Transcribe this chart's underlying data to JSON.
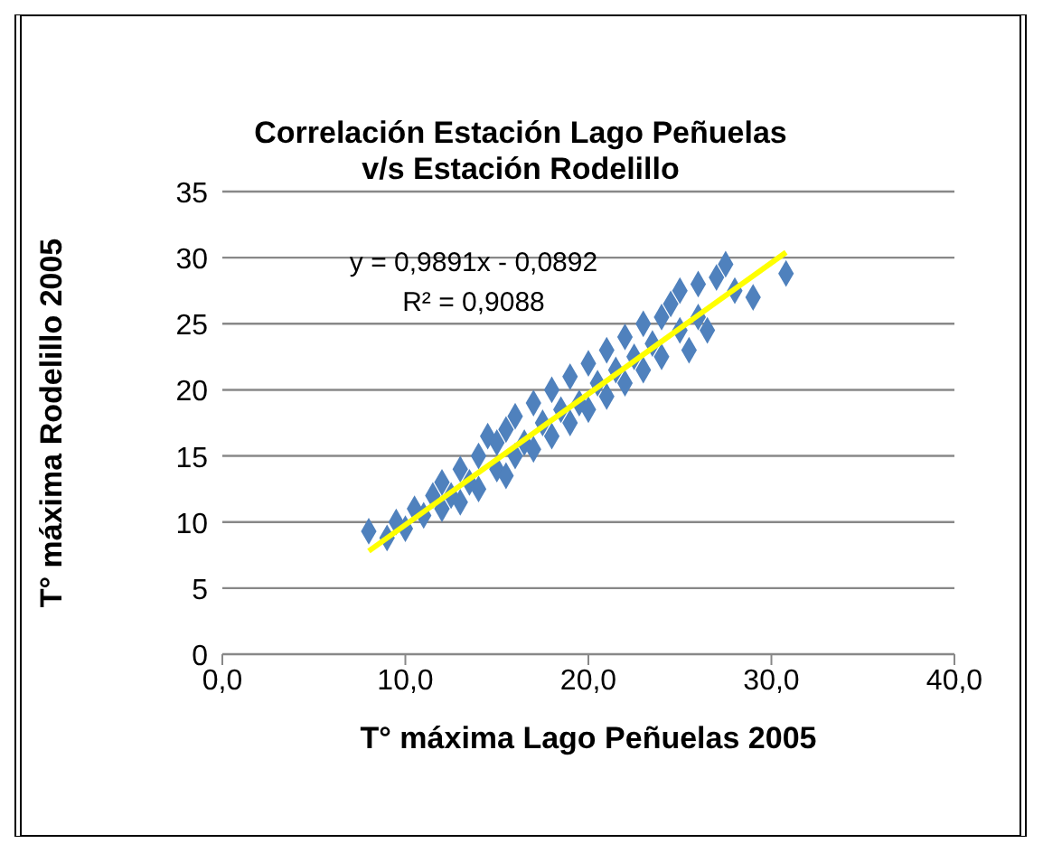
{
  "chart_data": {
    "type": "scatter",
    "title": "Correlación Estación Lago Peñuelas\nv/s Estación Rodelillo",
    "xlabel": "T° máxima Lago Peñuelas 2005",
    "ylabel": "T° máxima Rodelillo 2005",
    "annotations": [
      "y = 0,9891x - 0,0892",
      "R² = 0,9088"
    ],
    "xlim": [
      0,
      40
    ],
    "xticks": [
      {
        "value": 0,
        "label": "0,0"
      },
      {
        "value": 10,
        "label": "10,0"
      },
      {
        "value": 20,
        "label": "20,0"
      },
      {
        "value": 30,
        "label": "30,0"
      },
      {
        "value": 40,
        "label": "40,0"
      }
    ],
    "ylim": [
      0,
      35
    ],
    "yticks": [
      0,
      5,
      10,
      15,
      20,
      25,
      30,
      35
    ],
    "grid": "y",
    "marker": "diamond",
    "series": [
      {
        "color": "#4f81bd",
        "x": [
          8,
          9,
          9.5,
          10,
          10.5,
          11,
          11.5,
          12,
          12,
          12.5,
          13,
          13,
          13.5,
          14,
          14,
          14.5,
          15,
          15,
          15.5,
          15.5,
          16,
          16,
          16.5,
          17,
          17,
          17.5,
          18,
          18,
          18.5,
          19,
          19,
          19.5,
          20,
          20,
          20.5,
          21,
          21,
          21.5,
          22,
          22,
          22.5,
          23,
          23,
          23.5,
          24,
          24,
          24.5,
          25,
          25,
          25.5,
          26,
          26,
          26.5,
          27,
          27.5,
          28,
          29,
          30.8
        ],
        "values": [
          9.3,
          8.8,
          10,
          9.5,
          11,
          10.5,
          12,
          11,
          13,
          12,
          11.5,
          14,
          13,
          12.5,
          15,
          16.5,
          14,
          16,
          13.5,
          17,
          15,
          18,
          16,
          19,
          15.5,
          17.5,
          20,
          16.5,
          18.5,
          21,
          17.5,
          19,
          22,
          18.5,
          20.5,
          23,
          19.5,
          21.5,
          24,
          20.5,
          22.5,
          25,
          21.5,
          23.5,
          25.5,
          22.5,
          26.5,
          24.5,
          27.5,
          23,
          28,
          25.5,
          24.5,
          28.5,
          29.5,
          27.5,
          27,
          28.8
        ]
      },
      {
        "type": "line",
        "marker": "none",
        "color": "#ffff00",
        "x": [
          8,
          30.8
        ],
        "values": [
          7.8,
          30.4
        ]
      }
    ]
  }
}
